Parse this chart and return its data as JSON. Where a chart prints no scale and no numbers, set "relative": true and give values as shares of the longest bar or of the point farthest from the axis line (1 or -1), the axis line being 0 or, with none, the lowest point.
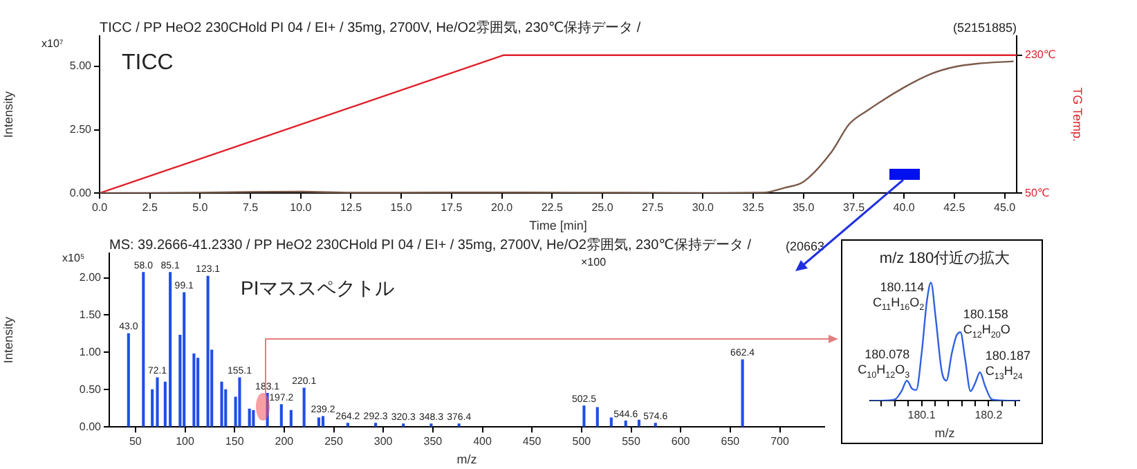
{
  "chart_data": [
    {
      "type": "line",
      "title": "TICC / PP HeO2 230CHold PI 04 / EI+ / 35mg, 2700V, He/O2雰囲気, 230℃保持データ /",
      "xlabel": "Time [min]",
      "ylabel": "Intensity",
      "y2label": "TG Temp.",
      "annotations": [
        "(52151885)",
        "TICC",
        "x10⁷"
      ],
      "xlim": [
        0,
        45.6
      ],
      "xticks": [
        {
          "value": 0,
          "label": "0.0"
        },
        {
          "value": 2.5,
          "label": "2.5"
        },
        {
          "value": 5,
          "label": "5.0"
        },
        {
          "value": 7.5,
          "label": "7.5"
        },
        {
          "value": 10,
          "label": "10.0"
        },
        {
          "value": 12.5,
          "label": "12.5"
        },
        {
          "value": 15,
          "label": "15.0"
        },
        {
          "value": 17.5,
          "label": "17.5"
        },
        {
          "value": 20,
          "label": "20.0"
        },
        {
          "value": 22.5,
          "label": "22.5"
        },
        {
          "value": 25,
          "label": "25.0"
        },
        {
          "value": 27.5,
          "label": "27.5"
        },
        {
          "value": 30,
          "label": "30.0"
        },
        {
          "value": 32.5,
          "label": "32.5"
        },
        {
          "value": 35,
          "label": "35.0"
        },
        {
          "value": 37.5,
          "label": "37.5"
        },
        {
          "value": 40,
          "label": "40.0"
        },
        {
          "value": 42.5,
          "label": "42.5"
        },
        {
          "value": 45,
          "label": "45.0"
        }
      ],
      "ylim": [
        0,
        6.2
      ],
      "yticks": [
        {
          "value": 0,
          "label": "0.00"
        },
        {
          "value": 2.5,
          "label": "2.50"
        },
        {
          "value": 5,
          "label": "5.00"
        }
      ],
      "y2lim": [
        50,
        255
      ],
      "y2ticks": [
        {
          "value": 50,
          "label": "50℃"
        },
        {
          "value": 230,
          "label": "230℃"
        }
      ],
      "series": [
        {
          "color": "#7b5a4a",
          "x": [
            0,
            2.5,
            5,
            7.5,
            10,
            12.5,
            15,
            20,
            25,
            30,
            33,
            34.1,
            35,
            36.4,
            37.27,
            38.18,
            40,
            41.36,
            42.5,
            43.64,
            45.45
          ],
          "values": [
            0,
            0.01,
            0.02,
            0.05,
            0.06,
            0.02,
            0.02,
            0.03,
            0.02,
            0.01,
            0.02,
            0.22,
            0.45,
            1.63,
            2.72,
            3.26,
            4.17,
            4.71,
            4.98,
            5.11,
            5.2
          ]
        },
        {
          "color": "#e0202a",
          "axis": "y2",
          "x": [
            0,
            20.1,
            45.6
          ],
          "values": [
            50,
            230,
            230
          ]
        }
      ]
    },
    {
      "type": "bar",
      "title": "MS: 39.2666-41.2330 / PP HeO2 230CHold PI 04 / EI+ / 35mg, 2700V, He/O2雰囲気, 230℃保持データ /",
      "xlabel": "m/z",
      "ylabel": "Intensity",
      "color": "#1f4fe8",
      "annotations": [
        "(20663",
        "PIマススペクトル",
        "x10⁵",
        "×100",
        {
          "text": "43.0",
          "x": 43,
          "y": 1.25
        },
        {
          "text": "58.0",
          "x": 58,
          "y": 2.07
        },
        {
          "text": "72.1",
          "x": 72.1,
          "y": 0.66
        },
        {
          "text": "85.1",
          "x": 85.1,
          "y": 2.07
        },
        {
          "text": "99.1",
          "x": 99.1,
          "y": 1.8
        },
        {
          "text": "123.1",
          "x": 123.1,
          "y": 2.02
        },
        {
          "text": "155.1",
          "x": 155.1,
          "y": 0.66
        },
        {
          "text": "183.1",
          "x": 183.1,
          "y": 0.45
        },
        {
          "text": "197.2",
          "x": 197.2,
          "y": 0.3
        },
        {
          "text": "220.1",
          "x": 220.1,
          "y": 0.52
        },
        {
          "text": "239.2",
          "x": 239.2,
          "y": 0.14
        },
        {
          "text": "264.2",
          "x": 264.2,
          "y": 0.05
        },
        {
          "text": "292.3",
          "x": 292.3,
          "y": 0.05
        },
        {
          "text": "320.3",
          "x": 320.3,
          "y": 0.04
        },
        {
          "text": "348.3",
          "x": 348.3,
          "y": 0.04
        },
        {
          "text": "376.4",
          "x": 376.4,
          "y": 0.04
        },
        {
          "text": "502.5",
          "x": 502.5,
          "y": 0.28
        },
        {
          "text": "544.6",
          "x": 544.6,
          "y": 0.08
        },
        {
          "text": "574.6",
          "x": 574.6,
          "y": 0.05
        },
        {
          "text": "662.4",
          "x": 662.4,
          "y": 0.9
        }
      ],
      "x": [
        43,
        58,
        67,
        72.1,
        80,
        85.1,
        95,
        99.1,
        109,
        113,
        123.1,
        127,
        137,
        141,
        151,
        155.1,
        165,
        169,
        183.1,
        197.2,
        207,
        220.1,
        235,
        239.2,
        264.2,
        292.3,
        320.3,
        348.3,
        376.4,
        502.5,
        516,
        530,
        544.6,
        558,
        574.6,
        662.4
      ],
      "values": [
        1.25,
        2.07,
        0.5,
        0.66,
        0.6,
        2.07,
        1.23,
        1.8,
        0.98,
        0.92,
        2.02,
        1.03,
        0.6,
        0.5,
        0.4,
        0.66,
        0.24,
        0.22,
        0.45,
        0.3,
        0.22,
        0.52,
        0.12,
        0.14,
        0.05,
        0.05,
        0.04,
        0.04,
        0.04,
        0.28,
        0.26,
        0.12,
        0.08,
        0.09,
        0.05,
        0.9
      ],
      "xlim": [
        23.6,
        745
      ],
      "xticks": [
        50,
        100,
        150,
        200,
        250,
        300,
        350,
        400,
        450,
        500,
        550,
        600,
        650,
        700
      ],
      "ylim": [
        0,
        2.33
      ],
      "yticks": [
        {
          "value": 0,
          "label": "0.00"
        },
        {
          "value": 0.5,
          "label": "0.50"
        },
        {
          "value": 1,
          "label": "1.00"
        },
        {
          "value": 1.5,
          "label": "1.50"
        },
        {
          "value": 2,
          "label": "2.00"
        }
      ]
    },
    {
      "type": "line",
      "title": "m/z 180付近の拡大",
      "xlabel": "m/z",
      "relative": true,
      "xlim": [
        180.023,
        180.246
      ],
      "xticks": [
        {
          "value": 180.04,
          "label": null
        },
        {
          "value": 180.06,
          "label": null
        },
        {
          "value": 180.08,
          "label": null
        },
        {
          "value": 180.1,
          "label": "180.1"
        },
        {
          "value": 180.12,
          "label": null
        },
        {
          "value": 180.14,
          "label": null
        },
        {
          "value": 180.16,
          "label": null
        },
        {
          "value": 180.18,
          "label": null
        },
        {
          "value": 180.2,
          "label": "180.2"
        },
        {
          "value": 180.22,
          "label": null
        },
        {
          "value": 180.24,
          "label": null
        }
      ],
      "annotations": [
        {
          "text": "180.078\nC$_{10}$H$_{12}$O$_{3}$",
          "x": 180.078,
          "y": 0.17
        },
        {
          "text": "180.114\nC$_{11}$H$_{16}$O$_{2}$",
          "x": 180.114,
          "y": 1
        },
        {
          "text": "180.158\nC$_{12}$H$_{20}$O",
          "x": 180.158,
          "y": 0.58
        },
        {
          "text": "180.187\nC$_{13}$H$_{24}$",
          "x": 180.187,
          "y": 0.24
        }
      ],
      "series": [
        {
          "color": "#3060e0",
          "x": [
            180.023,
            180.04,
            180.06,
            180.07,
            180.078,
            180.086,
            180.092,
            180.1,
            180.108,
            180.114,
            180.121,
            180.13,
            180.137,
            180.145,
            180.152,
            180.158,
            180.165,
            180.173,
            180.18,
            180.187,
            180.195,
            180.205,
            180.23,
            180.246
          ],
          "values": [
            0,
            0,
            0.01,
            0.08,
            0.17,
            0.1,
            0.09,
            0.4,
            0.85,
            1,
            0.7,
            0.25,
            0.17,
            0.4,
            0.55,
            0.58,
            0.35,
            0.08,
            0.15,
            0.24,
            0.12,
            0.01,
            0,
            0
          ]
        }
      ]
    }
  ]
}
